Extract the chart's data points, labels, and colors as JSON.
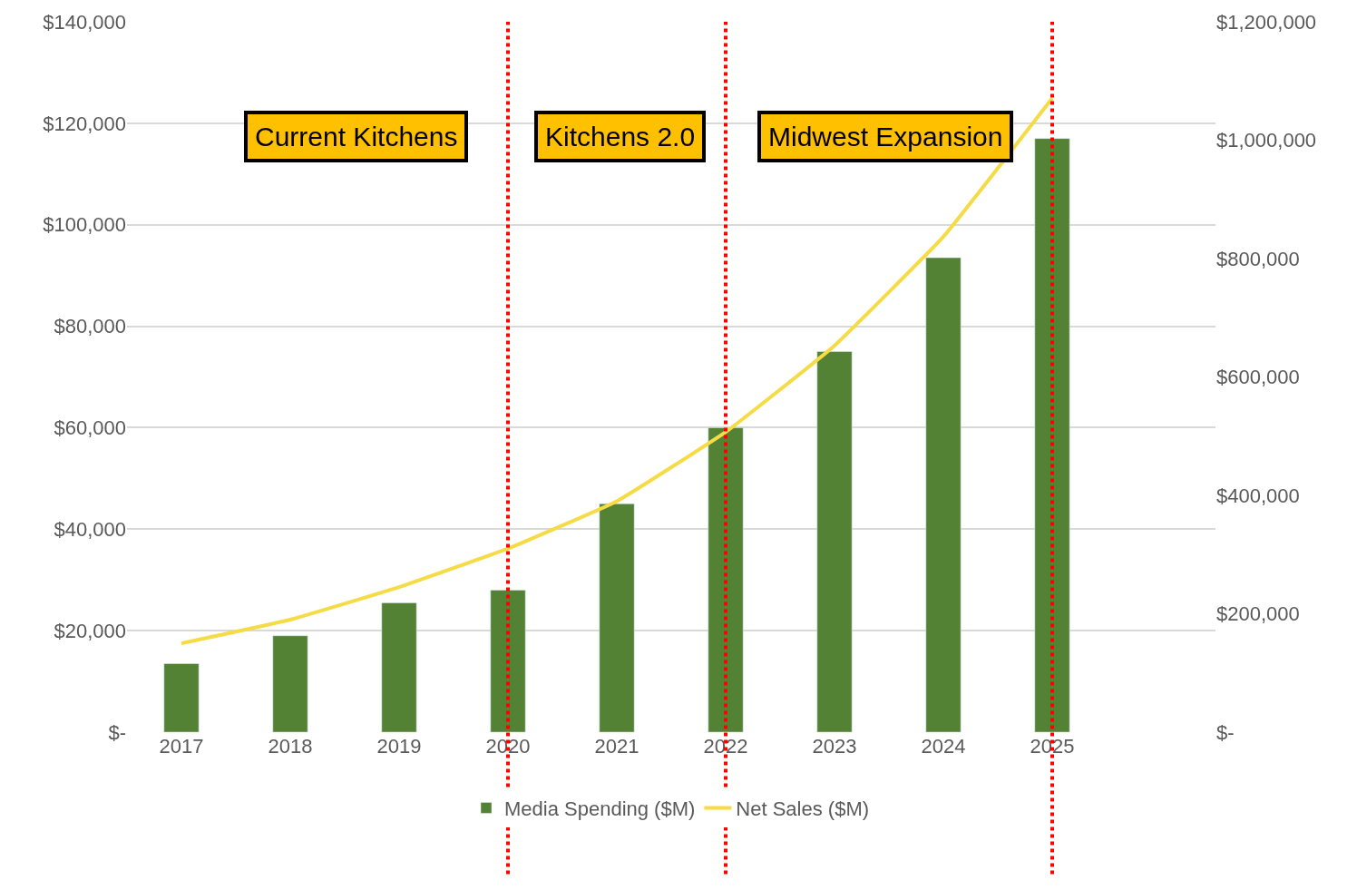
{
  "chart_data": {
    "type": "bar",
    "categories": [
      "2017",
      "2018",
      "2019",
      "2020",
      "2021",
      "2022",
      "2023",
      "2024",
      "2025",
      null
    ],
    "series": [
      {
        "name": "Media Spending ($M)",
        "color": "#548235",
        "values": [
          13500,
          19000,
          25500,
          28000,
          45000,
          60000,
          75000,
          93500,
          117000,
          null
        ]
      },
      {
        "name": "Net Sales ($M)",
        "type": "line",
        "axis": "y2",
        "color": "#f5dc46",
        "values": [
          150000,
          190000,
          245000,
          310000,
          390000,
          507000,
          653000,
          837000,
          1071000,
          null
        ]
      }
    ],
    "ylim": [
      0,
      140000
    ],
    "yticks": [
      {
        "value": 0,
        "label": "$-"
      },
      {
        "value": 20000,
        "label": "$20,000"
      },
      {
        "value": 40000,
        "label": "$40,000"
      },
      {
        "value": 60000,
        "label": "$60,000"
      },
      {
        "value": 80000,
        "label": "$80,000"
      },
      {
        "value": 100000,
        "label": "$100,000"
      },
      {
        "value": 120000,
        "label": "$120,000"
      },
      {
        "value": 140000,
        "label": "$140,000"
      }
    ],
    "y2lim": [
      0,
      1200000
    ],
    "y2ticks": [
      {
        "value": 0,
        "label": "$-"
      },
      {
        "value": 200000,
        "label": "$200,000"
      },
      {
        "value": 400000,
        "label": "$400,000"
      },
      {
        "value": 600000,
        "label": "$600,000"
      },
      {
        "value": 800000,
        "label": "$800,000"
      },
      {
        "value": 1000000,
        "label": "$1,000,000"
      },
      {
        "value": 1200000,
        "label": "$1,200,000"
      }
    ],
    "ref_lines": [
      {
        "axis": "x",
        "value": "2020",
        "color": "#ff0000",
        "line_style": "dotted"
      },
      {
        "axis": "x",
        "value": "2022",
        "color": "#ff0000",
        "line_style": "dotted"
      },
      {
        "axis": "x",
        "value": "2025",
        "color": "#ff0000",
        "line_style": "dotted"
      }
    ],
    "annotations": [
      "Current Kitchens",
      "Kitchens 2.0",
      "Midwest Expansion"
    ],
    "grid": "y",
    "legend": "bottom"
  }
}
